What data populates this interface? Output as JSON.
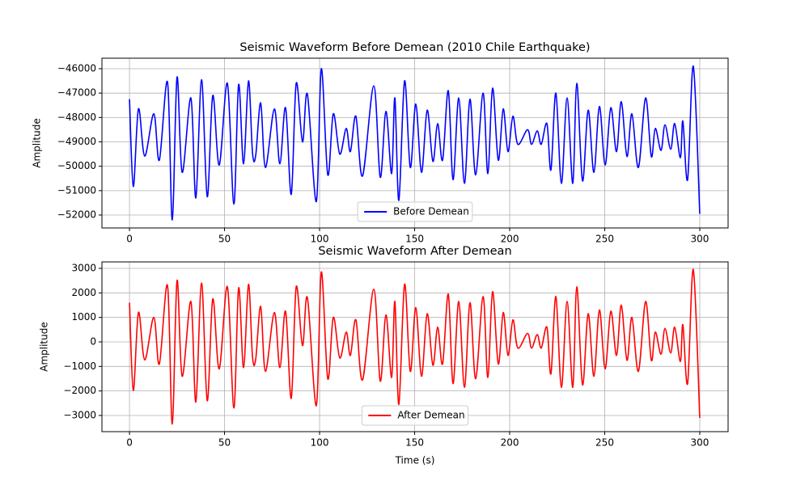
{
  "chart_data": [
    {
      "type": "line",
      "title": "Seismic Waveform Before Demean (2010 Chile Earthquake)",
      "ylabel": "Amplitude",
      "x": [
        0,
        2,
        4.7,
        8,
        12.8,
        15.7,
        20,
        22.5,
        25,
        27.7,
        32.3,
        34.9,
        37.9,
        40.9,
        43.8,
        47.2,
        51.5,
        54.9,
        57.4,
        60,
        62.6,
        64.7,
        66.4,
        69,
        71.5,
        76.2,
        79.1,
        82.1,
        85.1,
        87.7,
        91,
        93.6,
        98.3,
        100.9,
        104.3,
        107.2,
        110.6,
        114,
        116.2,
        119.1,
        122.6,
        128.5,
        131.9,
        134.9,
        137.9,
        139.6,
        141.7,
        144.7,
        147.7,
        150.6,
        153.6,
        156.6,
        159.6,
        162.1,
        164.7,
        167.7,
        170.2,
        173.2,
        176.2,
        179.1,
        182.1,
        186,
        188.5,
        191,
        194,
        196.6,
        199.1,
        201.7,
        204.3,
        209.4,
        211.5,
        214.5,
        216.6,
        219.6,
        221.7,
        224.3,
        227.2,
        230.2,
        233.2,
        235.3,
        238.3,
        241.3,
        244.3,
        247.2,
        250.2,
        253.2,
        256.2,
        258.7,
        261.7,
        264.3,
        267.7,
        271.5,
        274.5,
        276.6,
        279.6,
        281.7,
        284.7,
        286.8,
        289.8,
        291.1,
        293.6,
        296.6,
        300
      ],
      "series": [
        {
          "name": "Before Demean",
          "color": "#0000ff",
          "values": [
            -47250,
            -50830,
            -47650,
            -49580,
            -47850,
            -49750,
            -46550,
            -52200,
            -46350,
            -50250,
            -47200,
            -51300,
            -46450,
            -51250,
            -47100,
            -49950,
            -46600,
            -51550,
            -46650,
            -49900,
            -46500,
            -49450,
            -49550,
            -47400,
            -50050,
            -47650,
            -49900,
            -47600,
            -51150,
            -46600,
            -49000,
            -47050,
            -51450,
            -46000,
            -50350,
            -47850,
            -49500,
            -48450,
            -49400,
            -47950,
            -50400,
            -46700,
            -50450,
            -47750,
            -50300,
            -47200,
            -51400,
            -46500,
            -50050,
            -47450,
            -50250,
            -47700,
            -49800,
            -48250,
            -49750,
            -46900,
            -50550,
            -47200,
            -50700,
            -47250,
            -50350,
            -47000,
            -50300,
            -46800,
            -49750,
            -47650,
            -49400,
            -47950,
            -49100,
            -48500,
            -49100,
            -48550,
            -49100,
            -48250,
            -50150,
            -47000,
            -50700,
            -47200,
            -50700,
            -46600,
            -50600,
            -47700,
            -50250,
            -47550,
            -49950,
            -47600,
            -49400,
            -47350,
            -49600,
            -47850,
            -50050,
            -47200,
            -49600,
            -48450,
            -49350,
            -48300,
            -49300,
            -48250,
            -49650,
            -48150,
            -50550,
            -45900,
            -51950
          ]
        }
      ],
      "xlim": [
        -14.5,
        314.9
      ],
      "ylim": [
        -52530,
        -45569
      ],
      "xticks": [
        0,
        50,
        100,
        150,
        200,
        250,
        300
      ],
      "yticks": [
        {
          "value": -52000,
          "label": "−52000"
        },
        {
          "value": -51000,
          "label": "−51000"
        },
        {
          "value": -50000,
          "label": "−50000"
        },
        {
          "value": -49000,
          "label": "−49000"
        },
        {
          "value": -48000,
          "label": "−48000"
        },
        {
          "value": -47000,
          "label": "−47000"
        },
        {
          "value": -46000,
          "label": "−46000"
        }
      ],
      "grid": true,
      "legend": "lower center"
    },
    {
      "type": "line",
      "title": "Seismic Waveform After Demean",
      "xlabel": "Time (s)",
      "ylabel": "Amplitude",
      "x": [
        0,
        2,
        4.7,
        8,
        12.8,
        15.7,
        20,
        22.5,
        25,
        27.7,
        32.3,
        34.9,
        37.9,
        40.9,
        43.8,
        47.2,
        51.5,
        54.9,
        57.4,
        60,
        62.6,
        64.7,
        66.4,
        69,
        71.5,
        76.2,
        79.1,
        82.1,
        85.1,
        87.7,
        91,
        93.6,
        98.3,
        100.9,
        104.3,
        107.2,
        110.6,
        114,
        116.2,
        119.1,
        122.6,
        128.5,
        131.9,
        134.9,
        137.9,
        139.6,
        141.7,
        144.7,
        147.7,
        150.6,
        153.6,
        156.6,
        159.6,
        162.1,
        164.7,
        167.7,
        170.2,
        173.2,
        176.2,
        179.1,
        182.1,
        186,
        188.5,
        191,
        194,
        196.6,
        199.1,
        201.7,
        204.3,
        209.4,
        211.5,
        214.5,
        216.6,
        219.6,
        221.7,
        224.3,
        227.2,
        230.2,
        233.2,
        235.3,
        238.3,
        241.3,
        244.3,
        247.2,
        250.2,
        253.2,
        256.2,
        258.7,
        261.7,
        264.3,
        267.7,
        271.5,
        274.5,
        276.6,
        279.6,
        281.7,
        284.7,
        286.8,
        289.8,
        291.1,
        293.6,
        296.6,
        300
      ],
      "series": [
        {
          "name": "After Demean",
          "color": "#ff0000",
          "values": [
            1600,
            -1980,
            1200,
            -730,
            1000,
            -900,
            2300,
            -3350,
            2500,
            -1400,
            1650,
            -2450,
            2400,
            -2400,
            1750,
            -1100,
            2250,
            -2700,
            2200,
            -1050,
            2350,
            -600,
            -700,
            1450,
            -1200,
            1200,
            -1050,
            1250,
            -2300,
            2250,
            -150,
            1800,
            -2600,
            2850,
            -1500,
            1000,
            -650,
            400,
            -550,
            900,
            -1550,
            2150,
            -1600,
            1100,
            -1450,
            1650,
            -2550,
            2350,
            -1200,
            1400,
            -1400,
            1150,
            -950,
            600,
            -900,
            1950,
            -1700,
            1650,
            -1850,
            1600,
            -1500,
            1850,
            -1450,
            2050,
            -900,
            1200,
            -550,
            900,
            -250,
            350,
            -250,
            300,
            -250,
            600,
            -1300,
            1850,
            -1850,
            1650,
            -1850,
            2250,
            -1750,
            1150,
            -1400,
            1300,
            -1100,
            1250,
            -550,
            1500,
            -750,
            1000,
            -1200,
            1650,
            -750,
            400,
            -500,
            550,
            -450,
            600,
            -800,
            700,
            -1700,
            2950,
            -3100
          ]
        }
      ],
      "xlim": [
        -14.5,
        314.9
      ],
      "ylim": [
        -3660,
        3264
      ],
      "xticks": [
        0,
        50,
        100,
        150,
        200,
        250,
        300
      ],
      "yticks": [
        {
          "value": -3000,
          "label": "−3000"
        },
        {
          "value": -2000,
          "label": "−2000"
        },
        {
          "value": -1000,
          "label": "−1000"
        },
        0,
        1000,
        2000,
        3000
      ],
      "grid": true,
      "legend": "lower center"
    }
  ]
}
